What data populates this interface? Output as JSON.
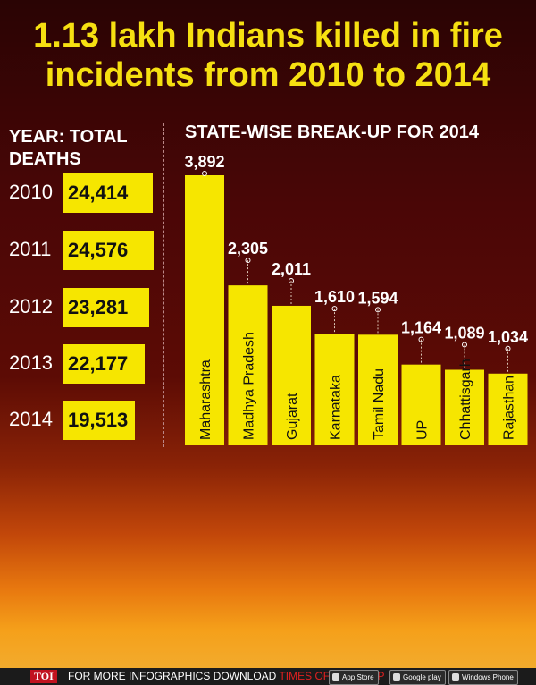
{
  "title_line1": "1.13 lakh Indians killed in fire",
  "title_line2": "incidents from 2010 to 2014",
  "left_header_line1": "YEAR: TOTAL",
  "left_header_line2": "DEATHS",
  "right_header": "STATE-WISE BREAK-UP FOR 2014",
  "yearly": [
    {
      "year": "2010",
      "deaths": "24,414"
    },
    {
      "year": "2011",
      "deaths": "24,576"
    },
    {
      "year": "2012",
      "deaths": "23,281"
    },
    {
      "year": "2013",
      "deaths": "22,177"
    },
    {
      "year": "2014",
      "deaths": "19,513"
    }
  ],
  "chart_data": [
    {
      "type": "bar",
      "orientation": "horizontal",
      "title": "YEAR: TOTAL DEATHS",
      "categories": [
        "2010",
        "2011",
        "2012",
        "2013",
        "2014"
      ],
      "values": [
        24414,
        24576,
        23281,
        22177,
        19513
      ]
    },
    {
      "type": "bar",
      "title": "STATE-WISE BREAK-UP FOR 2014",
      "categories": [
        "Maharashtra",
        "Madhya Pradesh",
        "Gujarat",
        "Karnataka",
        "Tamil Nadu",
        "UP",
        "Chhattisgarh",
        "Rajasthan"
      ],
      "values": [
        3892,
        2305,
        2011,
        1610,
        1594,
        1164,
        1089,
        1034
      ],
      "value_labels": [
        "3,892",
        "2,305",
        "2,011",
        "1,610",
        "1,594",
        "1,164",
        "1,089",
        "1,034"
      ],
      "colors": {
        "bar": "#f6e600",
        "text": "#ffffff",
        "bar_label": "#111111"
      }
    }
  ],
  "footer": {
    "badge": "TOI",
    "text": "FOR MORE INFOGRAPHICS DOWNLOAD",
    "brand": "TIMES OF INDIA APP",
    "app_store": "App Store",
    "google_play": "Google play",
    "windows_phone": "Windows Phone"
  }
}
